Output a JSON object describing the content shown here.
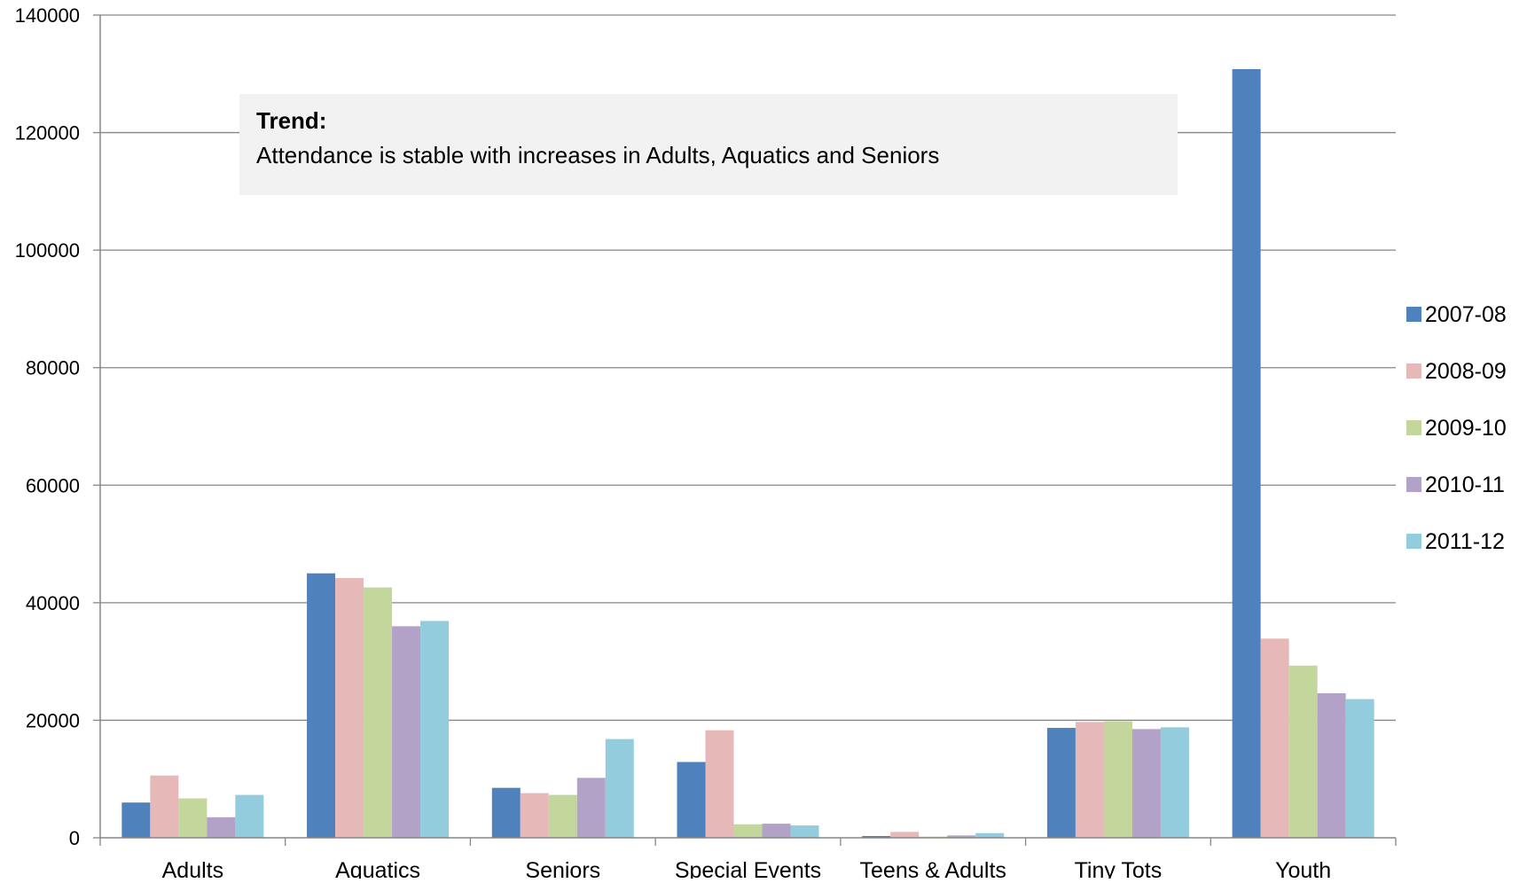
{
  "chart_data": {
    "type": "bar",
    "categories": [
      "Adults",
      "Aquatics",
      "Seniors",
      "Special Events",
      "Teens & Adults",
      "Tiny Tots",
      "Youth"
    ],
    "series": [
      {
        "name": "2007-08",
        "color": "#4F81BD",
        "values": [
          6000,
          45000,
          8500,
          12900,
          300,
          18700,
          130800
        ]
      },
      {
        "name": "2008-09",
        "color": "#E6B9B8",
        "values": [
          10600,
          44200,
          7600,
          18300,
          1000,
          19700,
          33900
        ]
      },
      {
        "name": "2009-10",
        "color": "#C3D69B",
        "values": [
          6700,
          42600,
          7300,
          2300,
          200,
          19800,
          29300
        ]
      },
      {
        "name": "2010-11",
        "color": "#B3A2C7",
        "values": [
          3500,
          36000,
          10200,
          2400,
          400,
          18500,
          24600
        ]
      },
      {
        "name": "2011-12",
        "color": "#93CDDD",
        "values": [
          7300,
          36900,
          16800,
          2100,
          800,
          18800,
          23600
        ]
      }
    ],
    "ylim": [
      0,
      140000
    ],
    "yticks": [
      "0",
      "20000",
      "40000",
      "60000",
      "80000",
      "100000",
      "120000",
      "140000"
    ],
    "grid": true,
    "legend_position": "right",
    "title": "",
    "xlabel": "",
    "ylabel": ""
  },
  "annotation": {
    "title": "Trend:",
    "text": "Attendance is stable with increases in Adults, Aquatics and Seniors"
  }
}
